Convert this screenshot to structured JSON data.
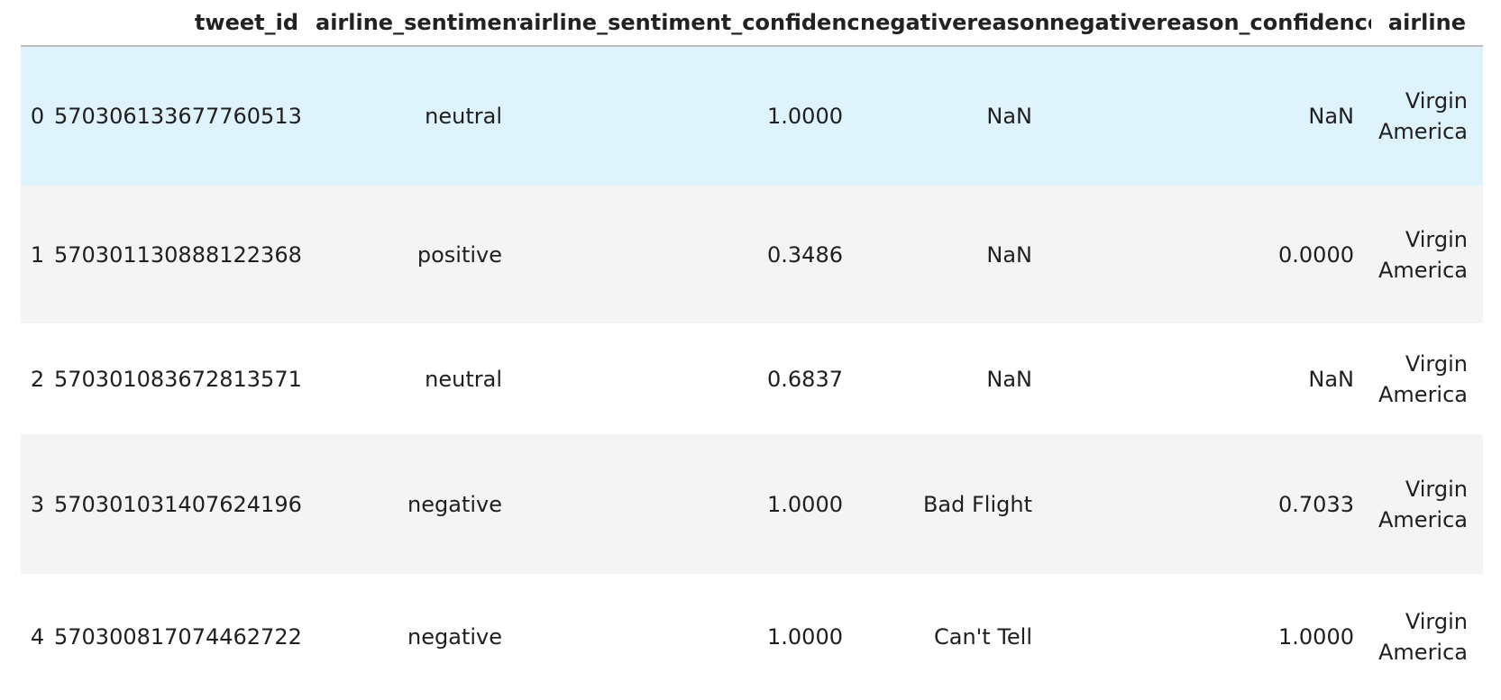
{
  "table": {
    "columns": [
      "",
      "tweet_id",
      "airline_sentiment",
      "airline_sentiment_confidence",
      "negativereason",
      "negativereason_confidence",
      "airline"
    ],
    "rows": [
      {
        "index": "0",
        "tweet_id": "570306133677760513",
        "airline_sentiment": "neutral",
        "airline_sentiment_confidence": "1.0000",
        "negativereason": "NaN",
        "negativereason_confidence": "NaN",
        "airline": [
          "Virgin",
          "America"
        ]
      },
      {
        "index": "1",
        "tweet_id": "570301130888122368",
        "airline_sentiment": "positive",
        "airline_sentiment_confidence": "0.3486",
        "negativereason": "NaN",
        "negativereason_confidence": "0.0000",
        "airline": [
          "Virgin",
          "America"
        ]
      },
      {
        "index": "2",
        "tweet_id": "570301083672813571",
        "airline_sentiment": "neutral",
        "airline_sentiment_confidence": "0.6837",
        "negativereason": "NaN",
        "negativereason_confidence": "NaN",
        "airline": [
          "Virgin",
          "America"
        ]
      },
      {
        "index": "3",
        "tweet_id": "570301031407624196",
        "airline_sentiment": "negative",
        "airline_sentiment_confidence": "1.0000",
        "negativereason": "Bad Flight",
        "negativereason_confidence": "0.7033",
        "airline": [
          "Virgin",
          "America"
        ]
      },
      {
        "index": "4",
        "tweet_id": "570300817074462722",
        "airline_sentiment": "negative",
        "airline_sentiment_confidence": "1.0000",
        "negativereason": "Can't Tell",
        "negativereason_confidence": "1.0000",
        "airline": [
          "Virgin",
          "America"
        ]
      }
    ]
  },
  "colors": {
    "hover_row": "#dff3fc",
    "striped_row": "#f4f4f4",
    "header_rule": "#bdbdbd"
  }
}
